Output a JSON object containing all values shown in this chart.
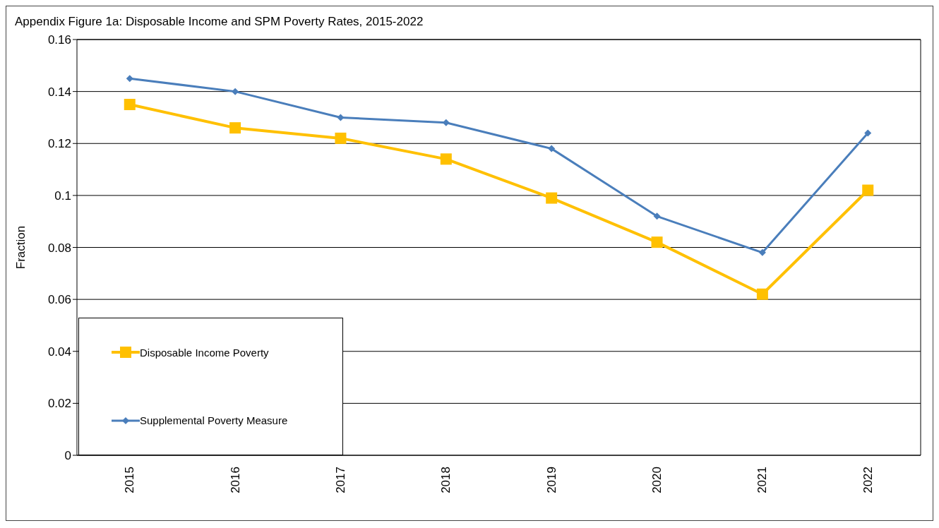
{
  "chart_data": {
    "type": "line",
    "title": "Appendix Figure 1a: Disposable Income and SPM Poverty Rates, 2015-2022",
    "ylabel": "Fraction",
    "categories": [
      "2015",
      "2016",
      "2017",
      "2018",
      "2019",
      "2020",
      "2021",
      "2022"
    ],
    "series": [
      {
        "name": "Disposable Income Poverty",
        "color": "#ffc000",
        "marker": "square",
        "values": [
          0.135,
          0.126,
          0.122,
          0.114,
          0.099,
          0.082,
          0.062,
          0.102
        ]
      },
      {
        "name": "Supplemental Poverty Measure",
        "color": "#4a7ebb",
        "marker": "diamond",
        "values": [
          0.145,
          0.14,
          0.13,
          0.128,
          0.118,
          0.092,
          0.078,
          0.124
        ]
      }
    ],
    "ylim": [
      0,
      0.16
    ],
    "yticks": [
      0,
      0.02,
      0.04,
      0.06,
      0.08,
      0.1,
      0.12,
      0.14,
      0.16
    ],
    "grid": "y",
    "legend": "bottom left",
    "line_style": "solid"
  }
}
